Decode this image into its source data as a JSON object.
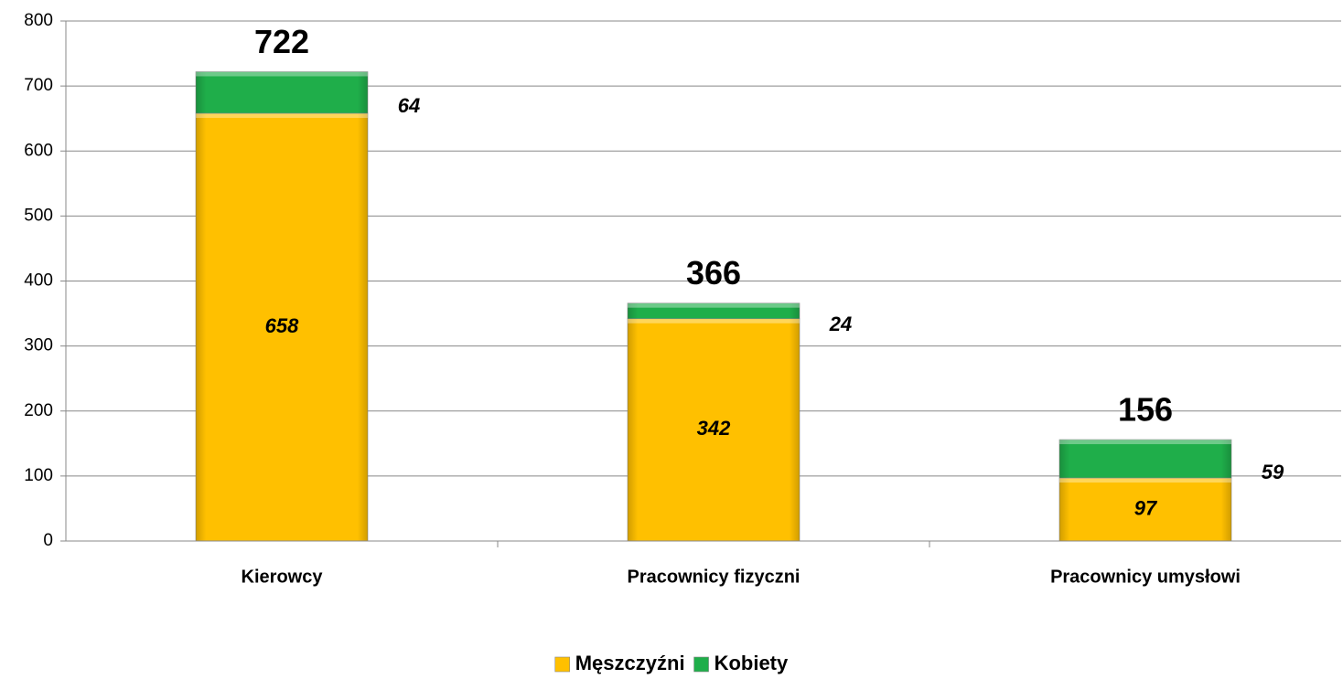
{
  "chart_data": {
    "type": "stacked_bar",
    "categories": [
      "Kierowcy",
      "Pracownicy fizyczni",
      "Pracownicy umysłowi"
    ],
    "series": [
      {
        "name": "Męszczyźni",
        "color": "#ffc000",
        "values": [
          658,
          342,
          97
        ]
      },
      {
        "name": "Kobiety",
        "color": "#1fae4a",
        "values": [
          64,
          24,
          59
        ]
      }
    ],
    "totals": [
      722,
      366,
      156
    ],
    "ylim": [
      0,
      800
    ],
    "yticks": [
      0,
      100,
      200,
      300,
      400,
      500,
      600,
      700,
      800
    ],
    "grid": true,
    "legend": "bottom"
  }
}
